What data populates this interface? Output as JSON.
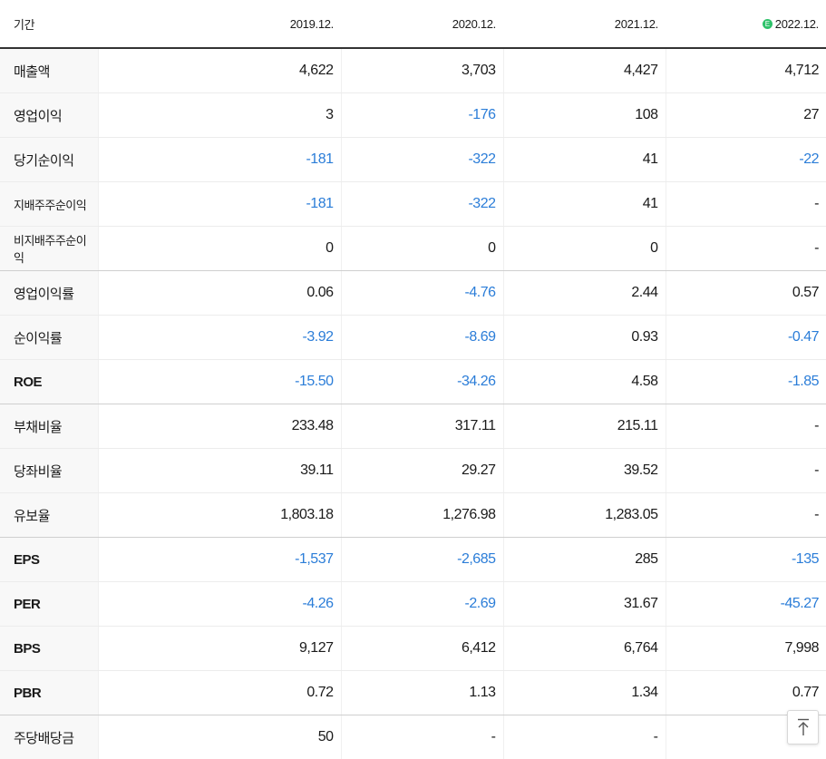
{
  "header": {
    "label": "기간",
    "periods": [
      "2019.12.",
      "2020.12.",
      "2021.12.",
      "2022.12."
    ],
    "estimate_badge": "E"
  },
  "colors": {
    "negative": "#2b7dd8",
    "estimate_badge": "#2ec26a"
  },
  "rows": [
    {
      "label": "매출액",
      "values": [
        "4,622",
        "3,703",
        "4,427",
        "4,712"
      ]
    },
    {
      "label": "영업이익",
      "values": [
        "3",
        "-176",
        "108",
        "27"
      ]
    },
    {
      "label": "당기순이익",
      "values": [
        "-181",
        "-322",
        "41",
        "-22"
      ]
    },
    {
      "label": "지배주주순이익",
      "values": [
        "-181",
        "-322",
        "41",
        "-"
      ]
    },
    {
      "label": "비지배주주순이익",
      "values": [
        "0",
        "0",
        "0",
        "-"
      ]
    },
    {
      "label": "영업이익률",
      "values": [
        "0.06",
        "-4.76",
        "2.44",
        "0.57"
      ]
    },
    {
      "label": "순이익률",
      "values": [
        "-3.92",
        "-8.69",
        "0.93",
        "-0.47"
      ]
    },
    {
      "label": "ROE",
      "values": [
        "-15.50",
        "-34.26",
        "4.58",
        "-1.85"
      ]
    },
    {
      "label": "부채비율",
      "values": [
        "233.48",
        "317.11",
        "215.11",
        "-"
      ]
    },
    {
      "label": "당좌비율",
      "values": [
        "39.11",
        "29.27",
        "39.52",
        "-"
      ]
    },
    {
      "label": "유보율",
      "values": [
        "1,803.18",
        "1,276.98",
        "1,283.05",
        "-"
      ]
    },
    {
      "label": "EPS",
      "values": [
        "-1,537",
        "-2,685",
        "285",
        "-135"
      ]
    },
    {
      "label": "PER",
      "values": [
        "-4.26",
        "-2.69",
        "31.67",
        "-45.27"
      ]
    },
    {
      "label": "BPS",
      "values": [
        "9,127",
        "6,412",
        "6,764",
        "7,998"
      ]
    },
    {
      "label": "PBR",
      "values": [
        "0.72",
        "1.13",
        "1.34",
        "0.77"
      ]
    },
    {
      "label": "주당배당금",
      "values": [
        "50",
        "-",
        "-",
        ""
      ]
    }
  ],
  "scroll_top_icon": "arrow-up-icon"
}
